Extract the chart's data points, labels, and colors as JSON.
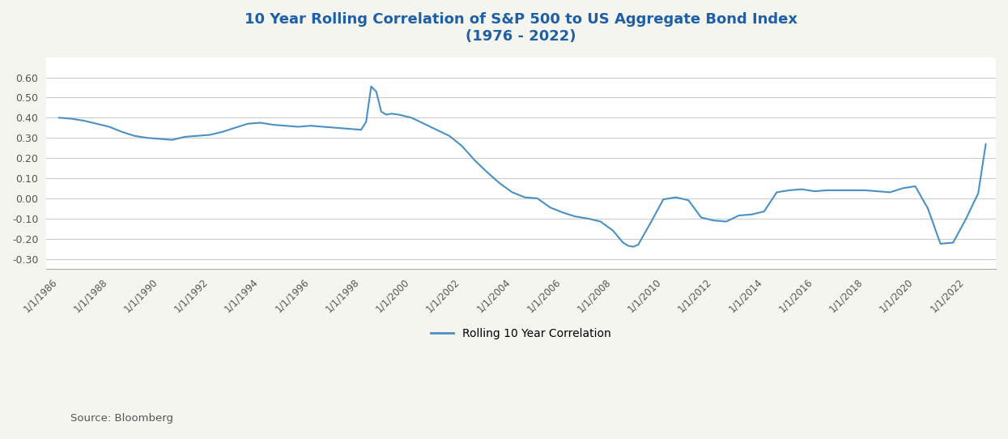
{
  "title_line1": "10 Year Rolling Correlation of S&P 500 to US Aggregate Bond Index",
  "title_line2": "(1976 - 2022)",
  "title_color": "#1f5fa6",
  "line_color": "#4a90c4",
  "background_color": "#f5f5f0",
  "plot_bg_color": "#ffffff",
  "ylabel": "",
  "xlabel": "",
  "ylim": [
    -0.3,
    0.7
  ],
  "yticks": [
    -0.3,
    -0.2,
    -0.1,
    0.0,
    0.1,
    0.2,
    0.3,
    0.4,
    0.5,
    0.6
  ],
  "source_text": "Source: Bloomberg",
  "legend_label": "Rolling 10 Year Correlation",
  "data_x": [
    1986.0,
    1986.5,
    1987.0,
    1987.5,
    1988.0,
    1988.5,
    1989.0,
    1989.5,
    1990.0,
    1990.5,
    1991.0,
    1991.5,
    1992.0,
    1992.5,
    1993.0,
    1993.5,
    1994.0,
    1994.5,
    1995.0,
    1995.5,
    1996.0,
    1996.5,
    1997.0,
    1997.5,
    1998.0,
    1998.2,
    1998.4,
    1998.6,
    1998.8,
    1999.0,
    1999.2,
    1999.5,
    2000.0,
    2000.5,
    2001.0,
    2001.5,
    2002.0,
    2002.5,
    2003.0,
    2003.5,
    2004.0,
    2004.5,
    2005.0,
    2005.5,
    2006.0,
    2006.5,
    2007.0,
    2007.5,
    2008.0,
    2008.2,
    2008.4,
    2008.6,
    2008.8,
    2009.0,
    2009.5,
    2010.0,
    2010.5,
    2011.0,
    2011.5,
    2012.0,
    2012.5,
    2013.0,
    2013.5,
    2014.0,
    2014.5,
    2015.0,
    2015.5,
    2016.0,
    2016.5,
    2017.0,
    2017.5,
    2018.0,
    2018.5,
    2019.0,
    2019.5,
    2020.0,
    2020.5,
    2021.0,
    2021.5,
    2022.0,
    2022.5,
    2022.8
  ],
  "data_y": [
    0.4,
    0.395,
    0.385,
    0.37,
    0.355,
    0.33,
    0.31,
    0.3,
    0.295,
    0.29,
    0.305,
    0.31,
    0.315,
    0.33,
    0.35,
    0.37,
    0.375,
    0.365,
    0.36,
    0.355,
    0.36,
    0.355,
    0.35,
    0.345,
    0.34,
    0.38,
    0.555,
    0.53,
    0.43,
    0.415,
    0.42,
    0.415,
    0.4,
    0.37,
    0.34,
    0.31,
    0.26,
    0.19,
    0.13,
    0.075,
    0.03,
    0.005,
    0.0,
    -0.045,
    -0.07,
    -0.09,
    -0.1,
    -0.115,
    -0.16,
    -0.19,
    -0.22,
    -0.235,
    -0.24,
    -0.23,
    -0.12,
    -0.005,
    0.005,
    -0.01,
    -0.095,
    -0.11,
    -0.115,
    -0.085,
    -0.08,
    -0.065,
    0.03,
    0.04,
    0.045,
    0.035,
    0.04,
    0.04,
    0.04,
    0.04,
    0.035,
    0.03,
    0.05,
    0.06,
    -0.05,
    -0.225,
    -0.22,
    -0.105,
    0.025,
    0.27
  ]
}
